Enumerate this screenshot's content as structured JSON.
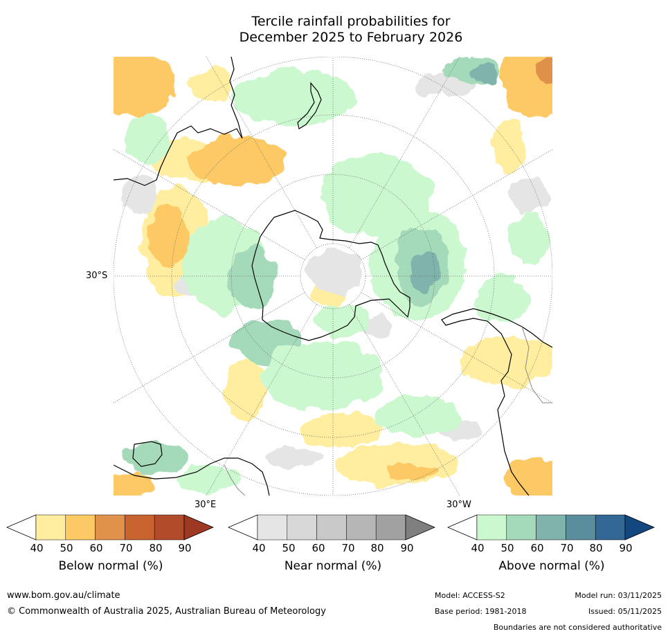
{
  "title": {
    "line1": "Tercile rainfall probabilities for",
    "line2": "December 2025 to February 2026"
  },
  "map": {
    "latitude_label": "30°S",
    "longitude_labels": [
      "30°E",
      "30°W"
    ],
    "colors": {
      "ocean": "#ffffff",
      "coastline": "#000000",
      "boundary": "#888888",
      "grid": "#666666"
    }
  },
  "colorbars": [
    {
      "name": "below-normal",
      "label": "Below normal (%)",
      "ticks": [
        "40",
        "50",
        "60",
        "70",
        "80",
        "90"
      ],
      "colors": [
        "#ffffff",
        "#ffeda0",
        "#fdc965",
        "#e0914a",
        "#c8622f",
        "#b14b29",
        "#9d3822"
      ]
    },
    {
      "name": "near-normal",
      "label": "Near normal (%)",
      "ticks": [
        "40",
        "50",
        "60",
        "70",
        "80",
        "90"
      ],
      "colors": [
        "#ffffff",
        "#e5e5e5",
        "#d8d8d8",
        "#c9c9c9",
        "#b6b6b6",
        "#a1a1a1",
        "#7f7f7f"
      ]
    },
    {
      "name": "above-normal",
      "label": "Above normal (%)",
      "ticks": [
        "40",
        "50",
        "60",
        "70",
        "80",
        "90"
      ],
      "colors": [
        "#ffffff",
        "#ccf8d0",
        "#a4d9b9",
        "#7fb3ab",
        "#5a8e9d",
        "#336796",
        "#13477f"
      ]
    }
  ],
  "footer": {
    "website": "www.bom.gov.au/climate",
    "copyright": "© Commonwealth of Australia 2025, Australian Bureau of Meteorology",
    "model": "Model: ACCESS-S2",
    "base_period": "Base period: 1981-2018",
    "model_run": "Model run: 03/11/2025",
    "issued": "Issued: 05/11/2025",
    "disclaimer": "Boundaries are not considered authoritative"
  }
}
